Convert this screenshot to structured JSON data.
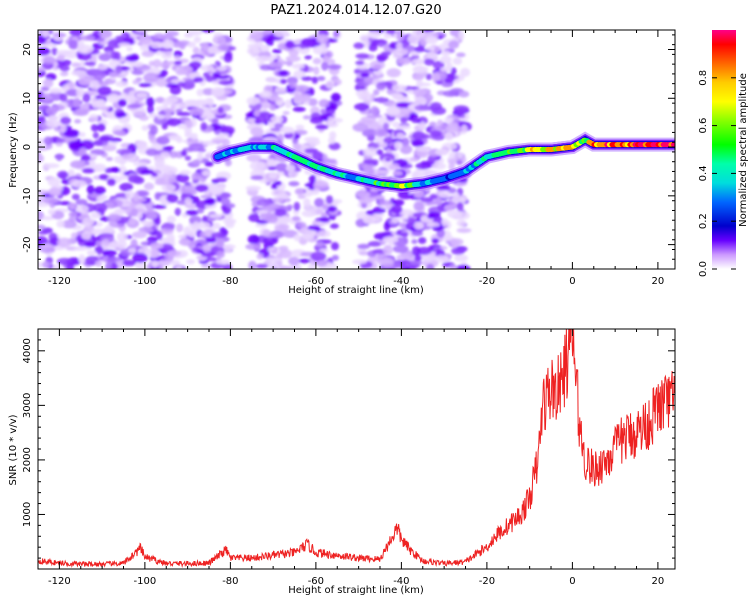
{
  "title": "PAZ1.2024.014.12.07.G20",
  "chart_data": [
    {
      "type": "heatmap",
      "xlabel": "Height of straight line (km)",
      "ylabel": "Frequency (Hz)",
      "xlim": [
        -125,
        24
      ],
      "ylim": [
        -25,
        24
      ],
      "xticks": [
        -120,
        -100,
        -80,
        -60,
        -40,
        -20,
        0,
        20
      ],
      "yticks": [
        -20,
        -10,
        0,
        10,
        20
      ],
      "colorbar": {
        "label": "Normalized spectral amplitude",
        "range": [
          0.0,
          1.0
        ],
        "ticks": [
          0.0,
          0.2,
          0.4,
          0.6,
          0.8
        ],
        "colormap": "gist_ncar"
      },
      "ridge": {
        "x": [
          -83,
          -80,
          -75,
          -70,
          -65,
          -60,
          -55,
          -50,
          -45,
          -40,
          -35,
          -30,
          -25,
          -20,
          -15,
          -10,
          -5,
          0,
          3,
          5,
          10,
          15,
          20,
          24
        ],
        "freq": [
          -2,
          -1,
          0,
          0,
          -2,
          -4,
          -5.5,
          -6.5,
          -7.5,
          -8,
          -7.5,
          -6.5,
          -5,
          -2,
          -1,
          -0.5,
          -0.5,
          0,
          1.5,
          0.5,
          0.5,
          0.5,
          0.5,
          0.5
        ],
        "amp": [
          0.3,
          0.35,
          0.4,
          0.45,
          0.5,
          0.5,
          0.45,
          0.4,
          0.55,
          0.7,
          0.45,
          0.3,
          0.35,
          0.5,
          0.6,
          0.7,
          0.75,
          0.8,
          0.7,
          0.85,
          0.9,
          0.95,
          1.0,
          1.0
        ]
      },
      "noise_regions": [
        [
          -125,
          -80
        ],
        [
          -75,
          -55
        ],
        [
          -50,
          -45
        ],
        [
          -45,
          -35
        ],
        [
          -37,
          -25
        ]
      ]
    },
    {
      "type": "line",
      "xlabel": "Height of straight line (km)",
      "ylabel": "SNR (10 * v/v)",
      "xlim": [
        -125,
        24
      ],
      "ylim": [
        0,
        4400
      ],
      "xticks": [
        -120,
        -100,
        -80,
        -60,
        -40,
        -20,
        0,
        20
      ],
      "yticks": [
        1000,
        2000,
        3000,
        4000
      ],
      "color": "#ee2222",
      "x": [
        -125,
        -120,
        -115,
        -110,
        -105,
        -101,
        -100,
        -95,
        -90,
        -85,
        -81,
        -80,
        -75,
        -70,
        -65,
        -62,
        -60,
        -55,
        -50,
        -45,
        -41,
        -40,
        -38,
        -35,
        -30,
        -25,
        -22,
        -20,
        -18,
        -15,
        -12,
        -10,
        -8,
        -7,
        -5,
        -3,
        -1,
        0,
        1,
        2,
        3,
        5,
        8,
        10,
        12,
        15,
        18,
        20,
        22,
        24
      ],
      "y": [
        150,
        110,
        90,
        90,
        100,
        380,
        220,
        100,
        100,
        110,
        350,
        200,
        200,
        250,
        300,
        450,
        300,
        250,
        200,
        180,
        750,
        550,
        350,
        150,
        100,
        130,
        300,
        400,
        600,
        800,
        1000,
        1300,
        2000,
        3000,
        3300,
        3300,
        3900,
        4350,
        3300,
        2400,
        2000,
        1800,
        2000,
        2200,
        2400,
        2500,
        2700,
        2950,
        3050,
        3100
      ]
    }
  ]
}
